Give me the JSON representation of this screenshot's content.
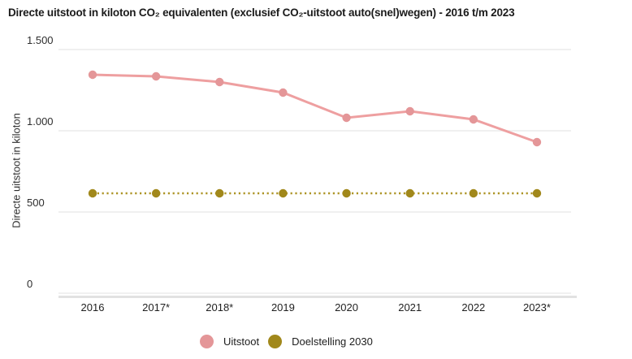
{
  "chart_data": {
    "type": "line",
    "title": "Directe uitstoot in kiloton CO₂ equivalenten (exclusief CO₂-uitstoot auto(snel)wegen) - 2016 t/m 2023",
    "ylabel": "Directe uitstoot in kiloton",
    "categories": [
      "2016",
      "2017*",
      "2018*",
      "2019",
      "2020",
      "2021",
      "2022",
      "2023*"
    ],
    "series": [
      {
        "name": "Uitstoot",
        "line_style": "solid",
        "marker_color": "#e49698",
        "line_color": "#ee9fa0",
        "values": [
          1345,
          1335,
          1300,
          1235,
          1080,
          1120,
          1070,
          930
        ]
      },
      {
        "name": "Doelstelling 2030",
        "line_style": "dotted",
        "marker_color": "#a1881b",
        "line_color": "#ad9426",
        "values": [
          615,
          615,
          615,
          615,
          615,
          615,
          615,
          615
        ]
      }
    ],
    "ylim": [
      0,
      1500
    ],
    "yticks": [
      {
        "label": "0",
        "value": 0
      },
      {
        "label": "500",
        "value": 500
      },
      {
        "label": "1.000",
        "value": 1000
      },
      {
        "label": "1.500",
        "value": 1500
      }
    ],
    "grid": "horizontal-only",
    "legend_position": "bottom-center"
  },
  "colors": {
    "gridline": "#ececec",
    "axis_baseline": "#e2e2e2",
    "title_text": "#1b1b1b",
    "axis_text": "#2d2d2d"
  }
}
